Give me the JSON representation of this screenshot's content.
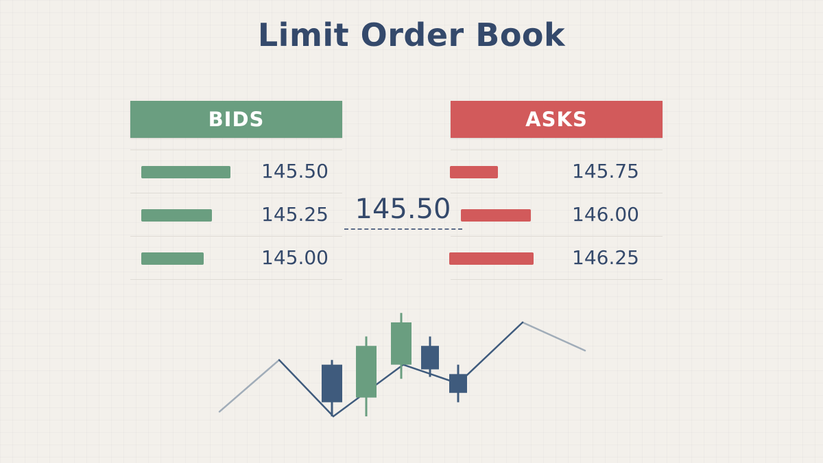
{
  "title": "Limit Order Book",
  "colors": {
    "bid": "#6a9e80",
    "ask": "#d25a5b",
    "text": "#34496b",
    "background": "#f3f0eb"
  },
  "bids": {
    "header": "BIDS",
    "rows": [
      {
        "price": "145.50",
        "size": 1.0
      },
      {
        "price": "145.25",
        "size": 0.79
      },
      {
        "price": "145.00",
        "size": 0.7
      }
    ]
  },
  "asks": {
    "header": "ASKS",
    "rows": [
      {
        "price": "145.75",
        "size": 0.57
      },
      {
        "price": "146.00",
        "size": 0.83
      },
      {
        "price": "146.25",
        "size": 1.0
      }
    ]
  },
  "mid_price": "145.50",
  "price_chart": {
    "line": [
      0.05,
      0.6,
      0.0,
      0.55,
      0.35,
      1.0,
      0.7
    ],
    "candles": [
      {
        "color": "down",
        "open": 0.55,
        "close": 0.15,
        "high": 0.6,
        "low": 0.0
      },
      {
        "color": "up",
        "open": 0.2,
        "close": 0.75,
        "high": 0.85,
        "low": 0.0
      },
      {
        "color": "up",
        "open": 0.55,
        "close": 1.0,
        "high": 1.1,
        "low": 0.4
      },
      {
        "color": "down",
        "open": 0.75,
        "close": 0.5,
        "high": 0.85,
        "low": 0.42
      },
      {
        "color": "down",
        "open": 0.45,
        "close": 0.25,
        "high": 0.55,
        "low": 0.15
      }
    ]
  }
}
